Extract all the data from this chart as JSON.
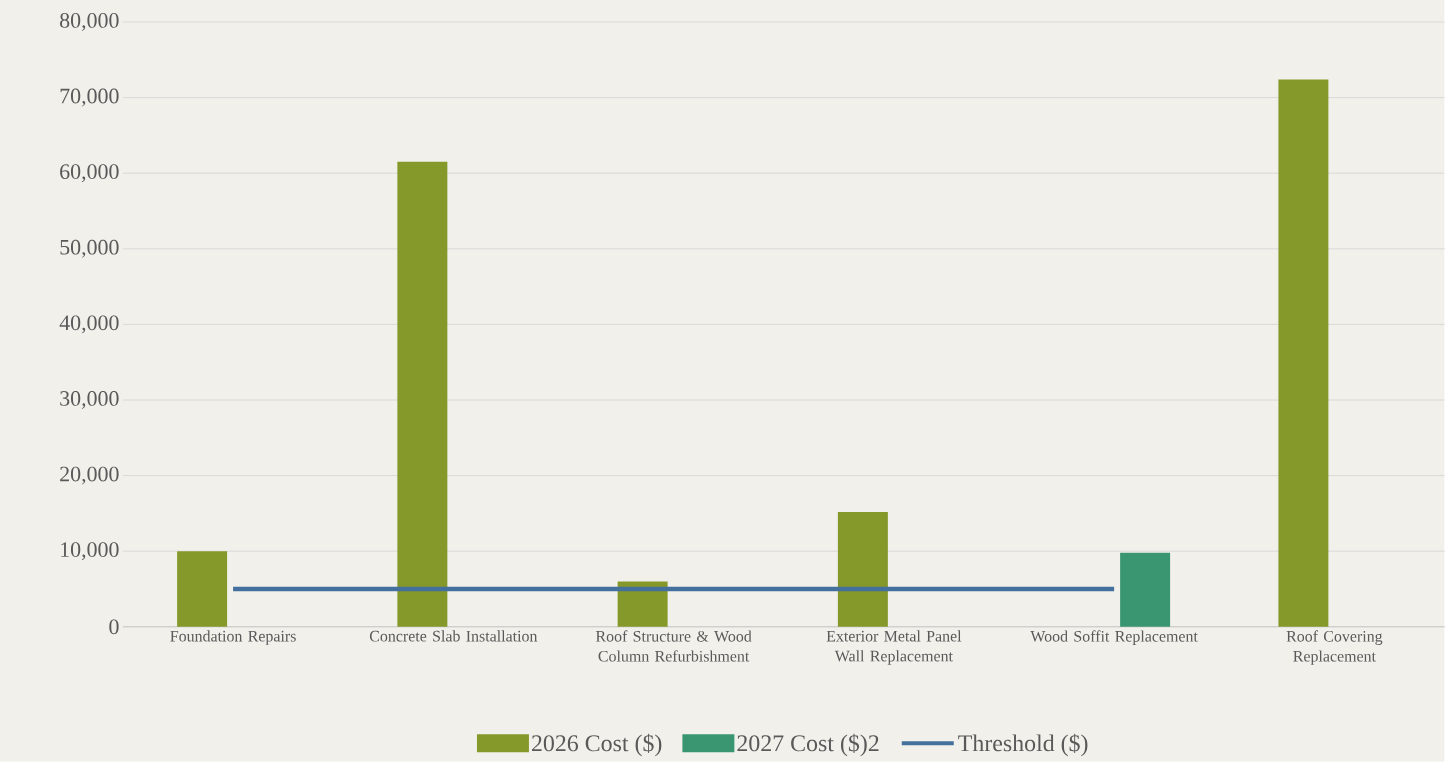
{
  "chart_data": {
    "type": "bar",
    "categories": [
      "Foundation Repairs",
      "Concrete Slab Installation",
      "Roof Structure & Wood Column Refurbishment",
      "Exterior Metal Panel Wall Replacement",
      "Wood Soffit Replacement",
      "Roof Covering Replacement"
    ],
    "series": [
      {
        "name": "2026 Cost ($)",
        "color": "#84992a",
        "values": [
          10000,
          61500,
          6000,
          15200,
          null,
          72400
        ]
      },
      {
        "name": "2027 Cost ($)2",
        "color": "#3a9670",
        "values": [
          null,
          null,
          null,
          null,
          9800,
          null
        ]
      },
      {
        "name": "Threshold ($)",
        "type": "line",
        "color": "#44709e",
        "values": [
          5000,
          5000,
          5000,
          5000,
          5000,
          null
        ]
      }
    ],
    "ylim": [
      0,
      80000
    ],
    "yticks": [
      0,
      {
        "value": 10000,
        "label": "10,000"
      },
      {
        "value": 20000,
        "label": "20,000"
      },
      {
        "value": 30000,
        "label": "30,000"
      },
      {
        "value": 40000,
        "label": "40,000"
      },
      {
        "value": 50000,
        "label": "50,000"
      },
      {
        "value": 60000,
        "label": "60,000"
      },
      {
        "value": 70000,
        "label": "70,000"
      },
      {
        "value": 80000,
        "label": "80,000"
      }
    ],
    "grid": "y",
    "legend": "bottom",
    "marker": "none",
    "line_style": "solid"
  }
}
